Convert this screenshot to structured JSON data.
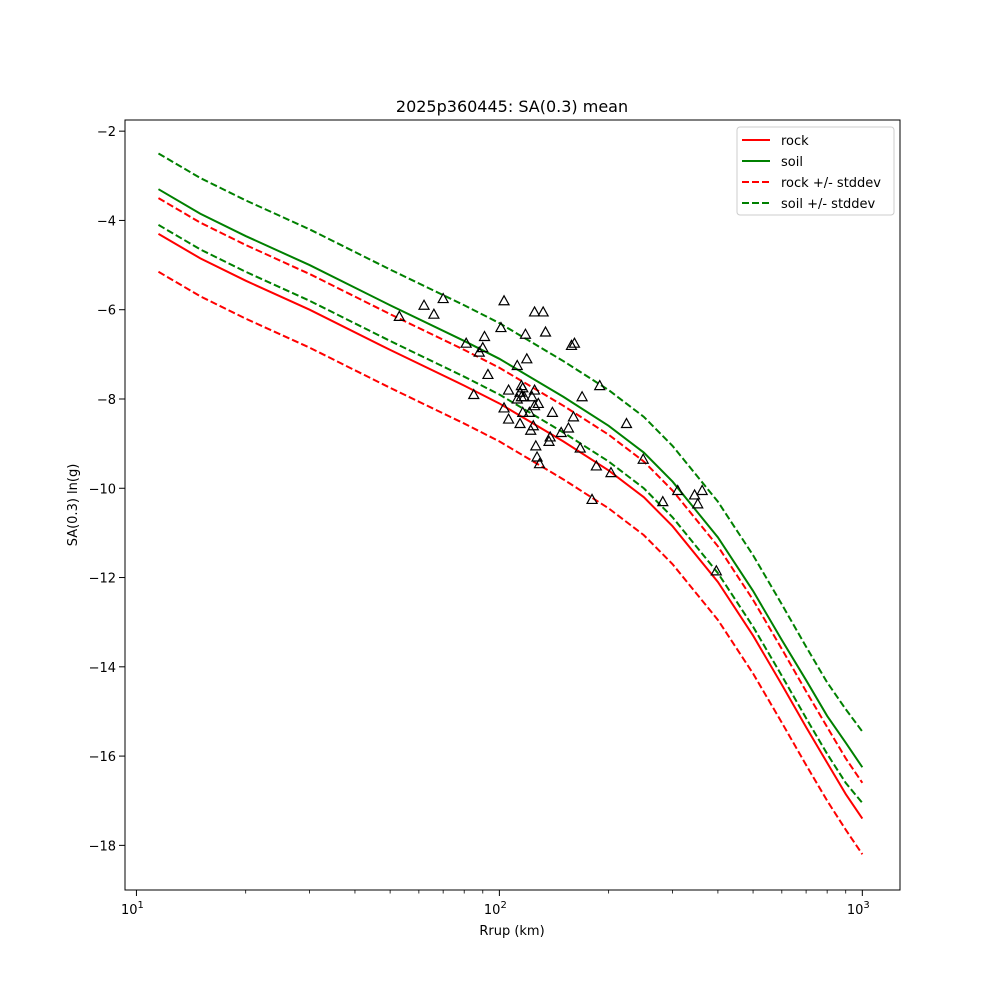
{
  "chart_data": {
    "type": "line",
    "title": "2025p360445: SA(0.3) mean",
    "xlabel": "Rrup (km)",
    "ylabel": "SA(0.3) ln(g)",
    "xscale": "log",
    "xlim": [
      9.3,
      1270
    ],
    "ylim": [
      -19.0,
      -1.75
    ],
    "x_tick_labels": [
      {
        "base": "10",
        "exp": "1",
        "value": 10
      },
      {
        "base": "10",
        "exp": "2",
        "value": 100
      },
      {
        "base": "10",
        "exp": "3",
        "value": 1000
      }
    ],
    "y_ticks": [
      -2,
      -4,
      -6,
      -8,
      -10,
      -12,
      -14,
      -16,
      -18
    ],
    "y_tick_labels": [
      "−2",
      "−4",
      "−6",
      "−8",
      "−10",
      "−12",
      "−14",
      "−16",
      "−18"
    ],
    "grid": false,
    "legend_position": "top-right",
    "legend": [
      {
        "label": "rock",
        "color": "#ff0000",
        "dash": "solid"
      },
      {
        "label": "soil",
        "color": "#008000",
        "dash": "solid"
      },
      {
        "label": "rock +/- stddev",
        "color": "#ff0000",
        "dash": "dashed"
      },
      {
        "label": "soil +/- stddev",
        "color": "#008000",
        "dash": "dashed"
      }
    ],
    "x": [
      11.5,
      15,
      20,
      30,
      50,
      80,
      100,
      150,
      200,
      250,
      300,
      400,
      500,
      600,
      700,
      800,
      900,
      1000
    ],
    "series": [
      {
        "name": "rock",
        "color": "#ff0000",
        "dash": "solid",
        "values": [
          -4.3,
          -4.85,
          -5.35,
          -6.0,
          -6.9,
          -7.7,
          -8.1,
          -8.95,
          -9.6,
          -10.2,
          -10.85,
          -12.1,
          -13.3,
          -14.4,
          -15.35,
          -16.15,
          -16.85,
          -17.4
        ]
      },
      {
        "name": "soil",
        "color": "#008000",
        "dash": "solid",
        "values": [
          -3.3,
          -3.85,
          -4.35,
          -5.0,
          -5.9,
          -6.7,
          -7.1,
          -7.95,
          -8.6,
          -9.2,
          -9.85,
          -11.1,
          -12.3,
          -13.4,
          -14.3,
          -15.1,
          -15.7,
          -16.25
        ]
      },
      {
        "name": "rock +/- stddev",
        "color": "#ff0000",
        "dash": "dashed",
        "values": [
          -5.15,
          -5.7,
          -6.2,
          -6.85,
          -7.75,
          -8.55,
          -8.95,
          -9.8,
          -10.45,
          -11.05,
          -11.7,
          -12.95,
          -14.15,
          -15.25,
          -16.2,
          -17.0,
          -17.65,
          -18.2
        ]
      },
      {
        "name": "rock +/- stddev",
        "color": "#ff0000",
        "dash": "dashed",
        "values": [
          -3.5,
          -4.05,
          -4.55,
          -5.2,
          -6.1,
          -6.9,
          -7.3,
          -8.15,
          -8.8,
          -9.4,
          -10.05,
          -11.3,
          -12.5,
          -13.6,
          -14.55,
          -15.35,
          -16.05,
          -16.6
        ]
      },
      {
        "name": "soil +/- stddev",
        "color": "#008000",
        "dash": "dashed",
        "values": [
          -4.1,
          -4.65,
          -5.15,
          -5.8,
          -6.7,
          -7.5,
          -7.9,
          -8.75,
          -9.4,
          -10.0,
          -10.65,
          -11.9,
          -13.1,
          -14.2,
          -15.15,
          -15.95,
          -16.6,
          -17.05
        ]
      },
      {
        "name": "soil +/- stddev",
        "color": "#008000",
        "dash": "dashed",
        "values": [
          -2.5,
          -3.05,
          -3.55,
          -4.2,
          -5.1,
          -5.9,
          -6.3,
          -7.15,
          -7.8,
          -8.4,
          -9.05,
          -10.3,
          -11.5,
          -12.6,
          -13.55,
          -14.35,
          -14.95,
          -15.45
        ]
      }
    ],
    "scatter": {
      "marker": "triangle",
      "color": "#000000",
      "points": [
        [
          53,
          -6.15
        ],
        [
          62,
          -5.9
        ],
        [
          66,
          -6.1
        ],
        [
          70,
          -5.75
        ],
        [
          81,
          -6.75
        ],
        [
          85,
          -7.9
        ],
        [
          88,
          -6.95
        ],
        [
          90,
          -6.85
        ],
        [
          91,
          -6.6
        ],
        [
          93,
          -7.45
        ],
        [
          101,
          -6.4
        ],
        [
          103,
          -5.8
        ],
        [
          103,
          -8.2
        ],
        [
          106,
          -8.45
        ],
        [
          106,
          -7.8
        ],
        [
          112,
          -7.25
        ],
        [
          112,
          -8.0
        ],
        [
          114,
          -8.55
        ],
        [
          114,
          -7.85
        ],
        [
          115,
          -7.7
        ],
        [
          115,
          -7.95
        ],
        [
          116,
          -7.75
        ],
        [
          116,
          -8.3
        ],
        [
          117,
          -7.95
        ],
        [
          118,
          -6.55
        ],
        [
          119,
          -7.1
        ],
        [
          121,
          -8.3
        ],
        [
          122,
          -8.7
        ],
        [
          123,
          -7.95
        ],
        [
          124,
          -8.6
        ],
        [
          125,
          -7.8
        ],
        [
          125,
          -8.15
        ],
        [
          125,
          -6.05
        ],
        [
          126,
          -9.05
        ],
        [
          127,
          -9.3
        ],
        [
          128,
          -8.1
        ],
        [
          129,
          -9.45
        ],
        [
          132,
          -6.05
        ],
        [
          134,
          -6.5
        ],
        [
          137,
          -8.95
        ],
        [
          138,
          -8.85
        ],
        [
          140,
          -8.3
        ],
        [
          148,
          -8.75
        ],
        [
          155,
          -8.65
        ],
        [
          158,
          -6.8
        ],
        [
          160,
          -8.4
        ],
        [
          161,
          -6.75
        ],
        [
          167,
          -9.1
        ],
        [
          169,
          -7.95
        ],
        [
          180,
          -10.25
        ],
        [
          185,
          -9.5
        ],
        [
          189,
          -7.7
        ],
        [
          203,
          -9.65
        ],
        [
          224,
          -8.55
        ],
        [
          249,
          -9.35
        ],
        [
          282,
          -10.3
        ],
        [
          310,
          -10.05
        ],
        [
          345,
          -10.15
        ],
        [
          352,
          -10.35
        ],
        [
          362,
          -10.05
        ],
        [
          396,
          -11.85
        ]
      ]
    }
  }
}
